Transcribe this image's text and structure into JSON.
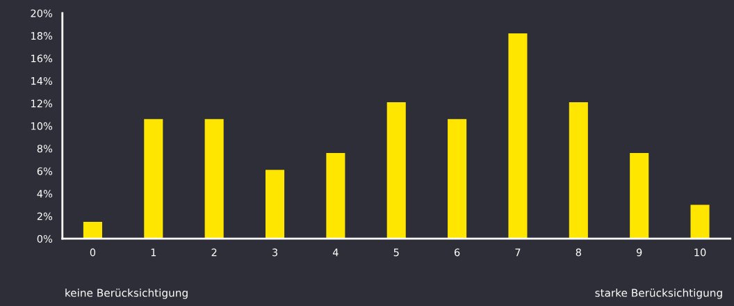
{
  "chart_data": {
    "type": "bar",
    "categories": [
      "0",
      "1",
      "2",
      "3",
      "4",
      "5",
      "6",
      "7",
      "8",
      "9",
      "10"
    ],
    "values": [
      1.5,
      10.6,
      10.6,
      6.1,
      7.6,
      12.1,
      10.6,
      18.2,
      12.1,
      7.6,
      3.0
    ],
    "color": "#ffe600",
    "ylim": [
      0,
      20
    ],
    "yticks": [
      {
        "value": 0,
        "label": "0%"
      },
      {
        "value": 2,
        "label": "2%"
      },
      {
        "value": 4,
        "label": "4%"
      },
      {
        "value": 6,
        "label": "6%"
      },
      {
        "value": 8,
        "label": "8%"
      },
      {
        "value": 10,
        "label": "10%"
      },
      {
        "value": 12,
        "label": "12%"
      },
      {
        "value": 14,
        "label": "14%"
      },
      {
        "value": 16,
        "label": "16%"
      },
      {
        "value": 18,
        "label": "18%"
      },
      {
        "value": 20,
        "label": "20%"
      }
    ],
    "grid": false,
    "annotations": [
      "keine Berücksichtigung",
      "starke Berücksichtigung"
    ]
  }
}
